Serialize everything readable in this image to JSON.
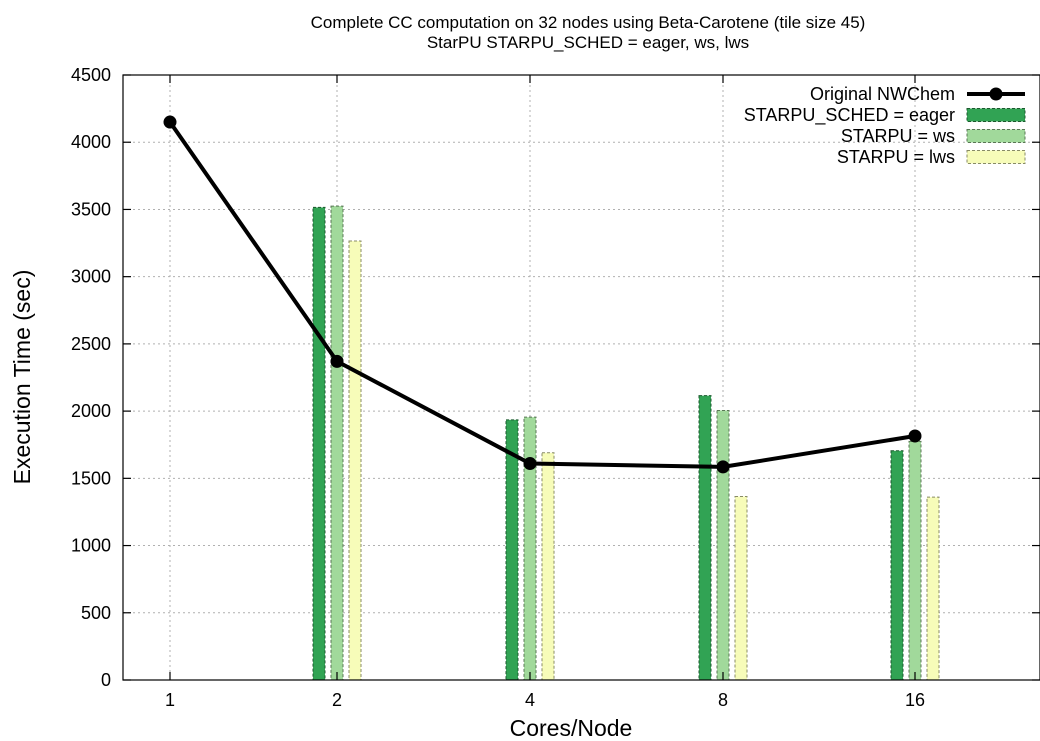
{
  "chart_data": {
    "type": "bar",
    "title": "Complete CC computation on 32 nodes using Beta-Carotene (tile size 45)",
    "subtitle": "StarPU STARPU_SCHED = eager, ws, lws",
    "xlabel": "Cores/Node",
    "ylabel": "Execution Time (sec)",
    "categories": [
      "1",
      "2",
      "4",
      "8",
      "16"
    ],
    "ylim": [
      0,
      4500
    ],
    "yticks": [
      0,
      500,
      1000,
      1500,
      2000,
      2500,
      3000,
      3500,
      4000,
      4500
    ],
    "grid": true,
    "legend_position": "top-right",
    "series": [
      {
        "name": "Original NWChem",
        "kind": "line",
        "color": "#000000",
        "values": [
          4150,
          2370,
          1610,
          1585,
          1815
        ]
      },
      {
        "name": "STARPU_SCHED = eager",
        "kind": "bar",
        "color": "#31a354",
        "values": [
          null,
          3515,
          1935,
          2115,
          1705
        ]
      },
      {
        "name": "STARPU = ws",
        "kind": "bar",
        "color": "#a1d99b",
        "values": [
          null,
          3525,
          1955,
          2005,
          1775
        ]
      },
      {
        "name": "STARPU = lws",
        "kind": "bar",
        "color": "#f7fcb9",
        "values": [
          null,
          3265,
          1690,
          1365,
          1360
        ]
      }
    ]
  }
}
